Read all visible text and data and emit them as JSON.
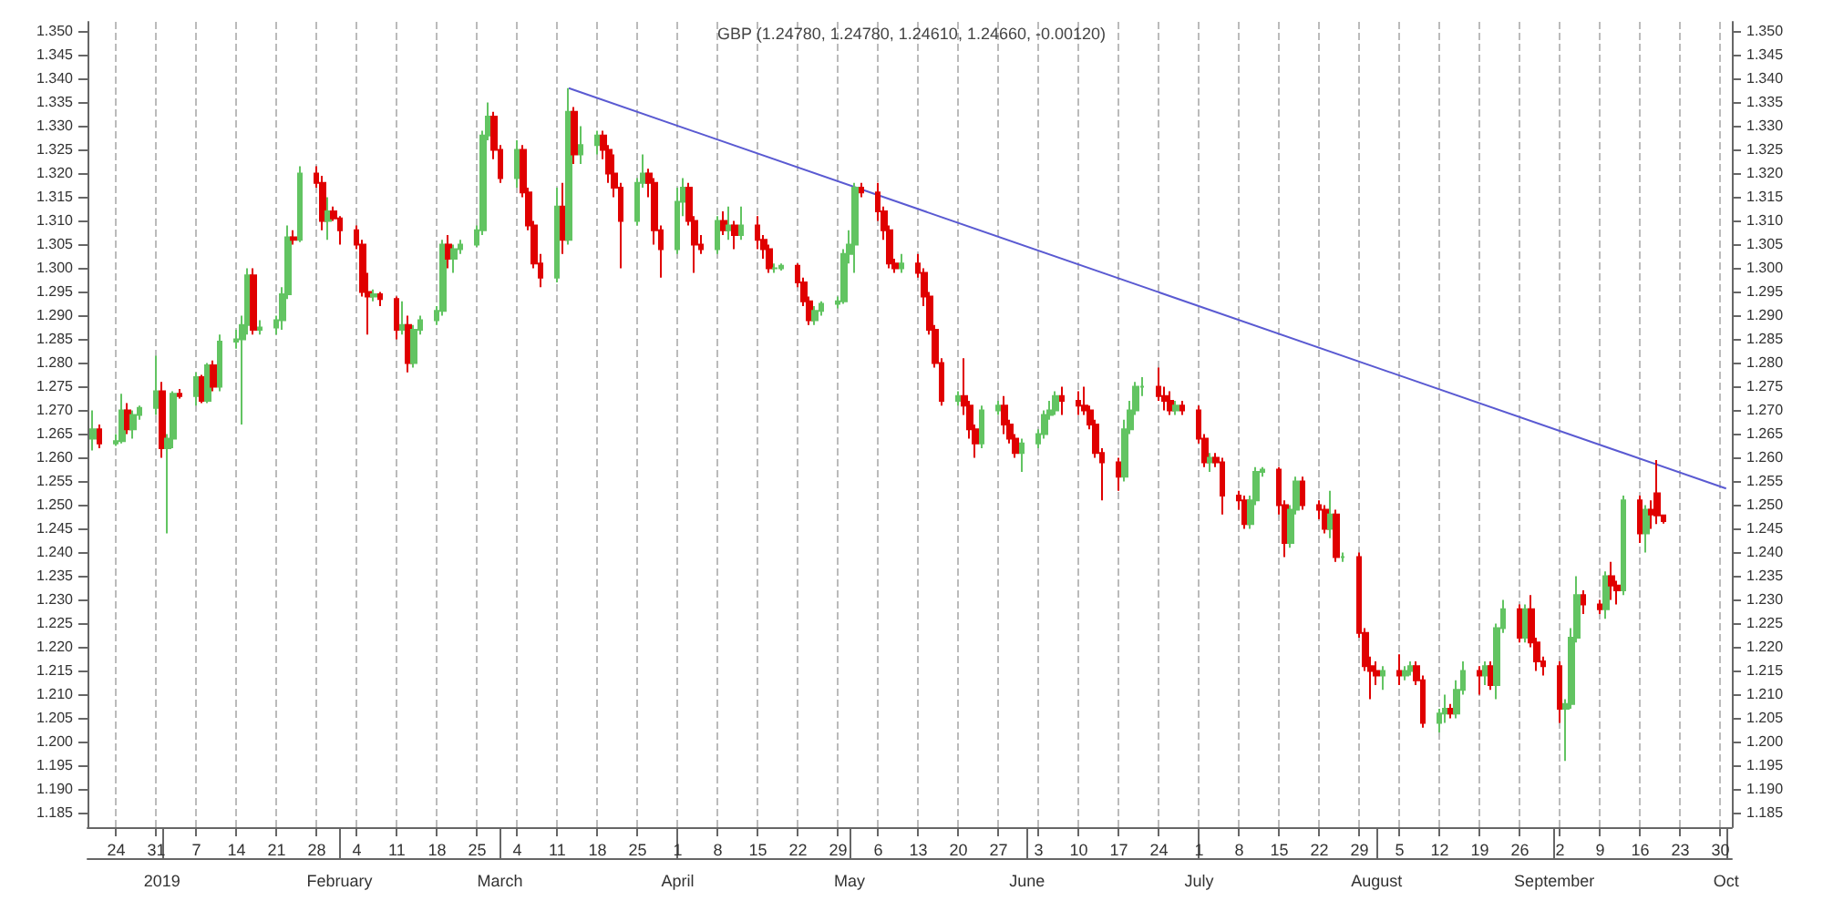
{
  "chart_data": {
    "type": "candlestick",
    "title": "GBP (1.24780, 1.24780, 1.24610, 1.24660, -0.00120)",
    "grid": "x",
    "xlim": [
      "2018-12-19",
      "2019-10-02"
    ],
    "xticks": [
      {
        "value": "2018-12-24",
        "label": "24"
      },
      {
        "value": "2018-12-31",
        "label": "31"
      },
      {
        "value": "2019-01-07",
        "label": "7"
      },
      {
        "value": "2019-01-14",
        "label": "14"
      },
      {
        "value": "2019-01-21",
        "label": "21"
      },
      {
        "value": "2019-01-28",
        "label": "28"
      },
      {
        "value": "2019-02-04",
        "label": "4"
      },
      {
        "value": "2019-02-11",
        "label": "11"
      },
      {
        "value": "2019-02-18",
        "label": "18"
      },
      {
        "value": "2019-02-25",
        "label": "25"
      },
      {
        "value": "2019-03-04",
        "label": "4"
      },
      {
        "value": "2019-03-11",
        "label": "11"
      },
      {
        "value": "2019-03-18",
        "label": "18"
      },
      {
        "value": "2019-03-25",
        "label": "25"
      },
      {
        "value": "2019-04-01",
        "label": "1"
      },
      {
        "value": "2019-04-08",
        "label": "8"
      },
      {
        "value": "2019-04-15",
        "label": "15"
      },
      {
        "value": "2019-04-22",
        "label": "22"
      },
      {
        "value": "2019-04-29",
        "label": "29"
      },
      {
        "value": "2019-05-06",
        "label": "6"
      },
      {
        "value": "2019-05-13",
        "label": "13"
      },
      {
        "value": "2019-05-20",
        "label": "20"
      },
      {
        "value": "2019-05-27",
        "label": "27"
      },
      {
        "value": "2019-06-03",
        "label": "3"
      },
      {
        "value": "2019-06-10",
        "label": "10"
      },
      {
        "value": "2019-06-17",
        "label": "17"
      },
      {
        "value": "2019-06-24",
        "label": "24"
      },
      {
        "value": "2019-07-01",
        "label": "1"
      },
      {
        "value": "2019-07-08",
        "label": "8"
      },
      {
        "value": "2019-07-15",
        "label": "15"
      },
      {
        "value": "2019-07-22",
        "label": "22"
      },
      {
        "value": "2019-07-29",
        "label": "29"
      },
      {
        "value": "2019-08-05",
        "label": "5"
      },
      {
        "value": "2019-08-12",
        "label": "12"
      },
      {
        "value": "2019-08-19",
        "label": "19"
      },
      {
        "value": "2019-08-26",
        "label": "26"
      },
      {
        "value": "2019-09-02",
        "label": "2"
      },
      {
        "value": "2019-09-09",
        "label": "9"
      },
      {
        "value": "2019-09-16",
        "label": "16"
      },
      {
        "value": "2019-09-23",
        "label": "23"
      },
      {
        "value": "2019-09-30",
        "label": "30"
      }
    ],
    "x2lim": [
      "2018-12-19",
      "2019-10-02"
    ],
    "x2ticks": [
      {
        "value": "2019-01-01",
        "label": "2019"
      },
      {
        "value": "2019-02-01",
        "label": "February"
      },
      {
        "value": "2019-03-01",
        "label": "March"
      },
      {
        "value": "2019-04-01",
        "label": "April"
      },
      {
        "value": "2019-05-01",
        "label": "May"
      },
      {
        "value": "2019-06-01",
        "label": "June"
      },
      {
        "value": "2019-07-01",
        "label": "July"
      },
      {
        "value": "2019-08-01",
        "label": "August"
      },
      {
        "value": "2019-09-01",
        "label": "September"
      },
      {
        "value": "2019-10-01",
        "label": "Oct"
      }
    ],
    "ylim": [
      1.182,
      1.352
    ],
    "yticks": [
      {
        "value": 1.185,
        "label": "1.185"
      },
      {
        "value": 1.19,
        "label": "1.190"
      },
      {
        "value": 1.195,
        "label": "1.195"
      },
      {
        "value": 1.2,
        "label": "1.200"
      },
      {
        "value": 1.205,
        "label": "1.205"
      },
      {
        "value": 1.21,
        "label": "1.210"
      },
      {
        "value": 1.215,
        "label": "1.215"
      },
      {
        "value": 1.22,
        "label": "1.220"
      },
      {
        "value": 1.225,
        "label": "1.225"
      },
      {
        "value": 1.23,
        "label": "1.230"
      },
      {
        "value": 1.235,
        "label": "1.235"
      },
      {
        "value": 1.24,
        "label": "1.240"
      },
      {
        "value": 1.245,
        "label": "1.245"
      },
      {
        "value": 1.25,
        "label": "1.250"
      },
      {
        "value": 1.255,
        "label": "1.255"
      },
      {
        "value": 1.26,
        "label": "1.260"
      },
      {
        "value": 1.265,
        "label": "1.265"
      },
      {
        "value": 1.27,
        "label": "1.270"
      },
      {
        "value": 1.275,
        "label": "1.275"
      },
      {
        "value": 1.28,
        "label": "1.280"
      },
      {
        "value": 1.285,
        "label": "1.285"
      },
      {
        "value": 1.29,
        "label": "1.290"
      },
      {
        "value": 1.295,
        "label": "1.295"
      },
      {
        "value": 1.3,
        "label": "1.300"
      },
      {
        "value": 1.305,
        "label": "1.305"
      },
      {
        "value": 1.31,
        "label": "1.310"
      },
      {
        "value": 1.315,
        "label": "1.315"
      },
      {
        "value": 1.32,
        "label": "1.320"
      },
      {
        "value": 1.325,
        "label": "1.325"
      },
      {
        "value": 1.33,
        "label": "1.330"
      },
      {
        "value": 1.335,
        "label": "1.335"
      },
      {
        "value": 1.34,
        "label": "1.340"
      },
      {
        "value": 1.345,
        "label": "1.345"
      },
      {
        "value": 1.35,
        "label": "1.350"
      }
    ],
    "y2lim": [
      1.182,
      1.352
    ],
    "y2ticks": [
      {
        "value": 1.185,
        "label": "1.185"
      },
      {
        "value": 1.19,
        "label": "1.190"
      },
      {
        "value": 1.195,
        "label": "1.195"
      },
      {
        "value": 1.2,
        "label": "1.200"
      },
      {
        "value": 1.205,
        "label": "1.205"
      },
      {
        "value": 1.21,
        "label": "1.210"
      },
      {
        "value": 1.215,
        "label": "1.215"
      },
      {
        "value": 1.22,
        "label": "1.220"
      },
      {
        "value": 1.225,
        "label": "1.225"
      },
      {
        "value": 1.23,
        "label": "1.230"
      },
      {
        "value": 1.235,
        "label": "1.235"
      },
      {
        "value": 1.24,
        "label": "1.240"
      },
      {
        "value": 1.245,
        "label": "1.245"
      },
      {
        "value": 1.25,
        "label": "1.250"
      },
      {
        "value": 1.255,
        "label": "1.255"
      },
      {
        "value": 1.26,
        "label": "1.260"
      },
      {
        "value": 1.265,
        "label": "1.265"
      },
      {
        "value": 1.27,
        "label": "1.270"
      },
      {
        "value": 1.275,
        "label": "1.275"
      },
      {
        "value": 1.28,
        "label": "1.280"
      },
      {
        "value": 1.285,
        "label": "1.285"
      },
      {
        "value": 1.29,
        "label": "1.290"
      },
      {
        "value": 1.295,
        "label": "1.295"
      },
      {
        "value": 1.3,
        "label": "1.300"
      },
      {
        "value": 1.305,
        "label": "1.305"
      },
      {
        "value": 1.31,
        "label": "1.310"
      },
      {
        "value": 1.315,
        "label": "1.315"
      },
      {
        "value": 1.32,
        "label": "1.320"
      },
      {
        "value": 1.325,
        "label": "1.325"
      },
      {
        "value": 1.33,
        "label": "1.330"
      },
      {
        "value": 1.335,
        "label": "1.335"
      },
      {
        "value": 1.34,
        "label": "1.340"
      },
      {
        "value": 1.345,
        "label": "1.345"
      },
      {
        "value": 1.35,
        "label": "1.350"
      }
    ],
    "series": [
      {
        "x": [
          "2018-12-20",
          "2018-12-21",
          "2018-12-24",
          "2018-12-25",
          "2018-12-26",
          "2018-12-27",
          "2018-12-28",
          "2018-12-31",
          "2019-01-01",
          "2019-01-02",
          "2019-01-03",
          "2019-01-04",
          "2019-01-07",
          "2019-01-08",
          "2019-01-09",
          "2019-01-10",
          "2019-01-11",
          "2019-01-14",
          "2019-01-15",
          "2019-01-16",
          "2019-01-17",
          "2019-01-18",
          "2019-01-21",
          "2019-01-22",
          "2019-01-23",
          "2019-01-24",
          "2019-01-25",
          "2019-01-28",
          "2019-01-29",
          "2019-01-30",
          "2019-01-31",
          "2019-02-01",
          "2019-02-04",
          "2019-02-05",
          "2019-02-06",
          "2019-02-07",
          "2019-02-08",
          "2019-02-11",
          "2019-02-12",
          "2019-02-13",
          "2019-02-14",
          "2019-02-15",
          "2019-02-18",
          "2019-02-19",
          "2019-02-20",
          "2019-02-21",
          "2019-02-22",
          "2019-02-25",
          "2019-02-26",
          "2019-02-27",
          "2019-02-28",
          "2019-03-01",
          "2019-03-04",
          "2019-03-05",
          "2019-03-06",
          "2019-03-07",
          "2019-03-08",
          "2019-03-11",
          "2019-03-12",
          "2019-03-13",
          "2019-03-14",
          "2019-03-15",
          "2019-03-18",
          "2019-03-19",
          "2019-03-20",
          "2019-03-21",
          "2019-03-22",
          "2019-03-25",
          "2019-03-26",
          "2019-03-27",
          "2019-03-28",
          "2019-03-29",
          "2019-04-01",
          "2019-04-02",
          "2019-04-03",
          "2019-04-04",
          "2019-04-05",
          "2019-04-08",
          "2019-04-09",
          "2019-04-10",
          "2019-04-11",
          "2019-04-12",
          "2019-04-15",
          "2019-04-16",
          "2019-04-17",
          "2019-04-18",
          "2019-04-19",
          "2019-04-22",
          "2019-04-23",
          "2019-04-24",
          "2019-04-25",
          "2019-04-26",
          "2019-04-29",
          "2019-04-30",
          "2019-05-01",
          "2019-05-02",
          "2019-05-03",
          "2019-05-06",
          "2019-05-07",
          "2019-05-08",
          "2019-05-09",
          "2019-05-10",
          "2019-05-13",
          "2019-05-14",
          "2019-05-15",
          "2019-05-16",
          "2019-05-17",
          "2019-05-20",
          "2019-05-21",
          "2019-05-22",
          "2019-05-23",
          "2019-05-24",
          "2019-05-27",
          "2019-05-28",
          "2019-05-29",
          "2019-05-30",
          "2019-05-31",
          "2019-06-03",
          "2019-06-04",
          "2019-06-05",
          "2019-06-06",
          "2019-06-07",
          "2019-06-10",
          "2019-06-11",
          "2019-06-12",
          "2019-06-13",
          "2019-06-14",
          "2019-06-17",
          "2019-06-18",
          "2019-06-19",
          "2019-06-20",
          "2019-06-21",
          "2019-06-24",
          "2019-06-25",
          "2019-06-26",
          "2019-06-27",
          "2019-06-28",
          "2019-07-01",
          "2019-07-02",
          "2019-07-03",
          "2019-07-04",
          "2019-07-05",
          "2019-07-08",
          "2019-07-09",
          "2019-07-10",
          "2019-07-11",
          "2019-07-12",
          "2019-07-15",
          "2019-07-16",
          "2019-07-17",
          "2019-07-18",
          "2019-07-19",
          "2019-07-22",
          "2019-07-23",
          "2019-07-24",
          "2019-07-25",
          "2019-07-26",
          "2019-07-29",
          "2019-07-30",
          "2019-07-31",
          "2019-08-01",
          "2019-08-02",
          "2019-08-05",
          "2019-08-06",
          "2019-08-07",
          "2019-08-08",
          "2019-08-09",
          "2019-08-12",
          "2019-08-13",
          "2019-08-14",
          "2019-08-15",
          "2019-08-16",
          "2019-08-19",
          "2019-08-20",
          "2019-08-21",
          "2019-08-22",
          "2019-08-23",
          "2019-08-26",
          "2019-08-27",
          "2019-08-28",
          "2019-08-29",
          "2019-08-30",
          "2019-09-02",
          "2019-09-03",
          "2019-09-04",
          "2019-09-05",
          "2019-09-06",
          "2019-09-09",
          "2019-09-10",
          "2019-09-11",
          "2019-09-12",
          "2019-09-13",
          "2019-09-16",
          "2019-09-17",
          "2019-09-18",
          "2019-09-19",
          "2019-09-20"
        ],
        "ohlc": [
          [
            1.264,
            1.27,
            1.2615,
            1.266
          ],
          [
            1.266,
            1.267,
            1.262,
            1.263
          ],
          [
            1.263,
            1.265,
            1.2625,
            1.2635
          ],
          [
            1.2635,
            1.2735,
            1.263,
            1.27
          ],
          [
            1.27,
            1.2715,
            1.265,
            1.266
          ],
          [
            1.266,
            1.27,
            1.264,
            1.269
          ],
          [
            1.269,
            1.271,
            1.268,
            1.2705
          ],
          [
            1.2705,
            1.2815,
            1.269,
            1.274
          ],
          [
            1.274,
            1.276,
            1.26,
            1.262
          ],
          [
            1.262,
            1.265,
            1.244,
            1.264
          ],
          [
            1.264,
            1.274,
            1.262,
            1.2735
          ],
          [
            1.2735,
            1.2745,
            1.2725,
            1.273
          ],
          [
            1.273,
            1.278,
            1.271,
            1.277
          ],
          [
            1.277,
            1.2775,
            1.2715,
            1.272
          ],
          [
            1.272,
            1.28,
            1.2715,
            1.2795
          ],
          [
            1.2795,
            1.2805,
            1.274,
            1.275
          ],
          [
            1.275,
            1.286,
            1.274,
            1.2845
          ],
          [
            1.2845,
            1.287,
            1.283,
            1.285
          ],
          [
            1.285,
            1.29,
            1.267,
            1.288
          ],
          [
            1.288,
            1.3,
            1.286,
            1.2985
          ],
          [
            1.2985,
            1.3,
            1.286,
            1.287
          ],
          [
            1.287,
            1.289,
            1.286,
            1.2875
          ],
          [
            1.2875,
            1.29,
            1.286,
            1.289
          ],
          [
            1.289,
            1.296,
            1.287,
            1.2945
          ],
          [
            1.2945,
            1.309,
            1.2935,
            1.3065
          ],
          [
            1.3065,
            1.308,
            1.305,
            1.306
          ],
          [
            1.306,
            1.3215,
            1.3055,
            1.32
          ],
          [
            1.32,
            1.3215,
            1.317,
            1.318
          ],
          [
            1.318,
            1.3195,
            1.308,
            1.31
          ],
          [
            1.31,
            1.315,
            1.306,
            1.312
          ],
          [
            1.312,
            1.313,
            1.31,
            1.3105
          ],
          [
            1.3105,
            1.311,
            1.305,
            1.308
          ],
          [
            1.308,
            1.309,
            1.304,
            1.305
          ],
          [
            1.305,
            1.306,
            1.294,
            1.295
          ],
          [
            1.295,
            1.299,
            1.286,
            1.294
          ],
          [
            1.294,
            1.2955,
            1.293,
            1.2945
          ],
          [
            1.2945,
            1.295,
            1.292,
            1.2935
          ],
          [
            1.2935,
            1.294,
            1.285,
            1.287
          ],
          [
            1.287,
            1.293,
            1.286,
            1.288
          ],
          [
            1.288,
            1.29,
            1.278,
            1.28
          ],
          [
            1.28,
            1.288,
            1.279,
            1.287
          ],
          [
            1.287,
            1.29,
            1.286,
            1.289
          ],
          [
            1.289,
            1.292,
            1.288,
            1.291
          ],
          [
            1.291,
            1.306,
            1.29,
            1.305
          ],
          [
            1.305,
            1.307,
            1.3,
            1.302
          ],
          [
            1.302,
            1.305,
            1.299,
            1.304
          ],
          [
            1.304,
            1.306,
            1.303,
            1.305
          ],
          [
            1.305,
            1.309,
            1.3045,
            1.308
          ],
          [
            1.308,
            1.329,
            1.307,
            1.328
          ],
          [
            1.328,
            1.335,
            1.327,
            1.332
          ],
          [
            1.332,
            1.333,
            1.323,
            1.325
          ],
          [
            1.325,
            1.326,
            1.318,
            1.319
          ],
          [
            1.319,
            1.327,
            1.317,
            1.325
          ],
          [
            1.325,
            1.326,
            1.315,
            1.316
          ],
          [
            1.316,
            1.317,
            1.308,
            1.309
          ],
          [
            1.309,
            1.31,
            1.3,
            1.301
          ],
          [
            1.301,
            1.303,
            1.296,
            1.298
          ],
          [
            1.298,
            1.317,
            1.297,
            1.313
          ],
          [
            1.313,
            1.318,
            1.303,
            1.306
          ],
          [
            1.306,
            1.338,
            1.305,
            1.333
          ],
          [
            1.333,
            1.334,
            1.322,
            1.324
          ],
          [
            1.324,
            1.33,
            1.322,
            1.326
          ],
          [
            1.326,
            1.329,
            1.324,
            1.328
          ],
          [
            1.328,
            1.329,
            1.323,
            1.325
          ],
          [
            1.325,
            1.326,
            1.318,
            1.32
          ],
          [
            1.32,
            1.324,
            1.315,
            1.317
          ],
          [
            1.317,
            1.318,
            1.3,
            1.31
          ],
          [
            1.31,
            1.319,
            1.309,
            1.318
          ],
          [
            1.318,
            1.324,
            1.317,
            1.32
          ],
          [
            1.32,
            1.321,
            1.315,
            1.318
          ],
          [
            1.318,
            1.319,
            1.305,
            1.308
          ],
          [
            1.308,
            1.309,
            1.298,
            1.304
          ],
          [
            1.304,
            1.317,
            1.303,
            1.314
          ],
          [
            1.314,
            1.319,
            1.311,
            1.317
          ],
          [
            1.317,
            1.318,
            1.309,
            1.31
          ],
          [
            1.31,
            1.311,
            1.299,
            1.305
          ],
          [
            1.305,
            1.307,
            1.303,
            1.304
          ],
          [
            1.304,
            1.311,
            1.303,
            1.31
          ],
          [
            1.31,
            1.312,
            1.307,
            1.308
          ],
          [
            1.308,
            1.313,
            1.306,
            1.309
          ],
          [
            1.309,
            1.31,
            1.304,
            1.307
          ],
          [
            1.307,
            1.313,
            1.306,
            1.309
          ],
          [
            1.309,
            1.311,
            1.304,
            1.306
          ],
          [
            1.306,
            1.307,
            1.302,
            1.304
          ],
          [
            1.304,
            1.305,
            1.299,
            1.3
          ],
          [
            1.3,
            1.301,
            1.299,
            1.3
          ],
          [
            1.3,
            1.301,
            1.2995,
            1.3005
          ],
          [
            1.3005,
            1.301,
            1.296,
            1.297
          ],
          [
            1.297,
            1.298,
            1.292,
            1.293
          ],
          [
            1.293,
            1.294,
            1.288,
            1.289
          ],
          [
            1.289,
            1.292,
            1.288,
            1.291
          ],
          [
            1.291,
            1.293,
            1.29,
            1.2925
          ],
          [
            1.2925,
            1.294,
            1.2915,
            1.293
          ],
          [
            1.293,
            1.304,
            1.2925,
            1.303
          ],
          [
            1.303,
            1.308,
            1.301,
            1.305
          ],
          [
            1.305,
            1.318,
            1.299,
            1.317
          ],
          [
            1.317,
            1.318,
            1.315,
            1.316
          ],
          [
            1.316,
            1.318,
            1.31,
            1.312
          ],
          [
            1.312,
            1.313,
            1.306,
            1.308
          ],
          [
            1.308,
            1.309,
            1.3,
            1.301
          ],
          [
            1.301,
            1.302,
            1.299,
            1.3
          ],
          [
            1.3,
            1.303,
            1.299,
            1.301
          ],
          [
            1.301,
            1.303,
            1.298,
            1.299
          ],
          [
            1.299,
            1.3,
            1.292,
            1.294
          ],
          [
            1.294,
            1.295,
            1.286,
            1.287
          ],
          [
            1.287,
            1.288,
            1.279,
            1.28
          ],
          [
            1.28,
            1.281,
            1.271,
            1.272
          ],
          [
            1.272,
            1.274,
            1.271,
            1.273
          ],
          [
            1.273,
            1.281,
            1.269,
            1.271
          ],
          [
            1.271,
            1.272,
            1.264,
            1.266
          ],
          [
            1.266,
            1.267,
            1.26,
            1.263
          ],
          [
            1.263,
            1.271,
            1.262,
            1.27
          ],
          [
            1.27,
            1.272,
            1.269,
            1.271
          ],
          [
            1.271,
            1.273,
            1.265,
            1.267
          ],
          [
            1.267,
            1.268,
            1.263,
            1.264
          ],
          [
            1.264,
            1.265,
            1.26,
            1.261
          ],
          [
            1.261,
            1.264,
            1.257,
            1.263
          ],
          [
            1.263,
            1.266,
            1.262,
            1.265
          ],
          [
            1.265,
            1.27,
            1.264,
            1.269
          ],
          [
            1.269,
            1.272,
            1.268,
            1.27
          ],
          [
            1.27,
            1.274,
            1.269,
            1.273
          ],
          [
            1.273,
            1.275,
            1.269,
            1.272
          ],
          [
            1.272,
            1.274,
            1.269,
            1.271
          ],
          [
            1.271,
            1.275,
            1.269,
            1.27
          ],
          [
            1.27,
            1.271,
            1.266,
            1.267
          ],
          [
            1.267,
            1.268,
            1.26,
            1.261
          ],
          [
            1.261,
            1.262,
            1.251,
            1.259
          ],
          [
            1.259,
            1.26,
            1.253,
            1.256
          ],
          [
            1.256,
            1.268,
            1.255,
            1.266
          ],
          [
            1.266,
            1.272,
            1.265,
            1.27
          ],
          [
            1.27,
            1.276,
            1.269,
            1.275
          ],
          [
            1.275,
            1.277,
            1.273,
            1.275
          ],
          [
            1.275,
            1.279,
            1.272,
            1.273
          ],
          [
            1.273,
            1.275,
            1.27,
            1.272
          ],
          [
            1.272,
            1.274,
            1.269,
            1.27
          ],
          [
            1.27,
            1.272,
            1.269,
            1.271
          ],
          [
            1.271,
            1.272,
            1.269,
            1.27
          ],
          [
            1.27,
            1.271,
            1.263,
            1.264
          ],
          [
            1.264,
            1.265,
            1.258,
            1.259
          ],
          [
            1.259,
            1.261,
            1.257,
            1.26
          ],
          [
            1.26,
            1.261,
            1.258,
            1.259
          ],
          [
            1.259,
            1.26,
            1.248,
            1.252
          ],
          [
            1.252,
            1.253,
            1.249,
            1.251
          ],
          [
            1.251,
            1.252,
            1.245,
            1.246
          ],
          [
            1.246,
            1.252,
            1.245,
            1.251
          ],
          [
            1.251,
            1.258,
            1.25,
            1.257
          ],
          [
            1.257,
            1.258,
            1.256,
            1.2575
          ],
          [
            1.2575,
            1.258,
            1.248,
            1.25
          ],
          [
            1.25,
            1.251,
            1.239,
            1.242
          ],
          [
            1.242,
            1.25,
            1.241,
            1.249
          ],
          [
            1.249,
            1.256,
            1.248,
            1.255
          ],
          [
            1.255,
            1.256,
            1.249,
            1.25
          ],
          [
            1.25,
            1.251,
            1.247,
            1.249
          ],
          [
            1.249,
            1.25,
            1.244,
            1.245
          ],
          [
            1.245,
            1.253,
            1.243,
            1.248
          ],
          [
            1.248,
            1.249,
            1.238,
            1.239
          ],
          [
            1.239,
            1.24,
            1.238,
            1.239
          ],
          [
            1.239,
            1.24,
            1.222,
            1.223
          ],
          [
            1.223,
            1.224,
            1.215,
            1.216
          ],
          [
            1.216,
            1.218,
            1.209,
            1.215
          ],
          [
            1.215,
            1.217,
            1.212,
            1.214
          ],
          [
            1.214,
            1.216,
            1.211,
            1.215
          ],
          [
            1.215,
            1.2185,
            1.212,
            1.214
          ],
          [
            1.214,
            1.216,
            1.213,
            1.215
          ],
          [
            1.215,
            1.217,
            1.214,
            1.216
          ],
          [
            1.216,
            1.217,
            1.212,
            1.213
          ],
          [
            1.213,
            1.214,
            1.203,
            1.204
          ],
          [
            1.204,
            1.207,
            1.202,
            1.206
          ],
          [
            1.206,
            1.21,
            1.204,
            1.207
          ],
          [
            1.207,
            1.208,
            1.205,
            1.206
          ],
          [
            1.206,
            1.213,
            1.205,
            1.211
          ],
          [
            1.211,
            1.217,
            1.21,
            1.215
          ],
          [
            1.215,
            1.216,
            1.21,
            1.214
          ],
          [
            1.214,
            1.217,
            1.212,
            1.216
          ],
          [
            1.216,
            1.217,
            1.211,
            1.212
          ],
          [
            1.212,
            1.225,
            1.209,
            1.224
          ],
          [
            1.224,
            1.23,
            1.223,
            1.228
          ],
          [
            1.228,
            1.229,
            1.221,
            1.222
          ],
          [
            1.222,
            1.229,
            1.221,
            1.228
          ],
          [
            1.228,
            1.231,
            1.22,
            1.221
          ],
          [
            1.221,
            1.222,
            1.215,
            1.217
          ],
          [
            1.217,
            1.218,
            1.214,
            1.216
          ],
          [
            1.216,
            1.217,
            1.204,
            1.207
          ],
          [
            1.207,
            1.209,
            1.196,
            1.208
          ],
          [
            1.208,
            1.224,
            1.207,
            1.222
          ],
          [
            1.222,
            1.235,
            1.221,
            1.231
          ],
          [
            1.231,
            1.232,
            1.227,
            1.229
          ],
          [
            1.229,
            1.23,
            1.227,
            1.228
          ],
          [
            1.228,
            1.236,
            1.226,
            1.235
          ],
          [
            1.235,
            1.238,
            1.23,
            1.233
          ],
          [
            1.233,
            1.234,
            1.229,
            1.232
          ],
          [
            1.232,
            1.252,
            1.231,
            1.251
          ],
          [
            1.251,
            1.252,
            1.242,
            1.244
          ],
          [
            1.244,
            1.25,
            1.24,
            1.249
          ],
          [
            1.249,
            1.251,
            1.245,
            1.248
          ],
          [
            1.2525,
            1.2595,
            1.246,
            1.2478
          ],
          [
            1.2478,
            1.2478,
            1.2461,
            1.2466
          ]
        ],
        "colors": [
          "#62c462",
          "#e00000",
          "#62c462",
          "#62c462",
          "#e00000",
          "#62c462",
          "#62c462",
          "#62c462",
          "#e00000",
          "#62c462",
          "#62c462",
          "#e00000",
          "#62c462",
          "#e00000",
          "#62c462",
          "#e00000",
          "#62c462",
          "#62c462",
          "#62c462",
          "#62c462",
          "#e00000",
          "#62c462",
          "#62c462",
          "#62c462",
          "#62c462",
          "#e00000",
          "#62c462",
          "#e00000",
          "#e00000",
          "#62c462",
          "#e00000",
          "#e00000",
          "#e00000",
          "#e00000",
          "#e00000",
          "#62c462",
          "#e00000",
          "#e00000",
          "#62c462",
          "#e00000",
          "#62c462",
          "#62c462",
          "#62c462",
          "#62c462",
          "#e00000",
          "#62c462",
          "#62c462",
          "#62c462",
          "#62c462",
          "#62c462",
          "#e00000",
          "#e00000",
          "#62c462",
          "#e00000",
          "#e00000",
          "#e00000",
          "#e00000",
          "#62c462",
          "#e00000",
          "#62c462",
          "#e00000",
          "#62c462",
          "#62c462",
          "#e00000",
          "#e00000",
          "#e00000",
          "#e00000",
          "#62c462",
          "#62c462",
          "#e00000",
          "#e00000",
          "#e00000",
          "#62c462",
          "#62c462",
          "#e00000",
          "#e00000",
          "#e00000",
          "#62c462",
          "#e00000",
          "#62c462",
          "#e00000",
          "#62c462",
          "#e00000",
          "#e00000",
          "#e00000",
          "#62c462",
          "#62c462",
          "#e00000",
          "#e00000",
          "#e00000",
          "#62c462",
          "#62c462",
          "#62c462",
          "#62c462",
          "#62c462",
          "#62c462",
          "#e00000",
          "#e00000",
          "#e00000",
          "#e00000",
          "#e00000",
          "#62c462",
          "#e00000",
          "#e00000",
          "#e00000",
          "#e00000",
          "#e00000",
          "#62c462",
          "#e00000",
          "#e00000",
          "#e00000",
          "#62c462",
          "#62c462",
          "#e00000",
          "#e00000",
          "#e00000",
          "#62c462",
          "#62c462",
          "#62c462",
          "#62c462",
          "#62c462",
          "#e00000",
          "#e00000",
          "#e00000",
          "#e00000",
          "#e00000",
          "#e00000",
          "#e00000",
          "#62c462",
          "#62c462",
          "#62c462",
          "#62c462",
          "#e00000",
          "#e00000",
          "#e00000",
          "#62c462",
          "#e00000",
          "#e00000",
          "#e00000",
          "#62c462",
          "#e00000",
          "#e00000",
          "#e00000",
          "#e00000",
          "#62c462",
          "#62c462",
          "#62c462",
          "#e00000",
          "#e00000",
          "#62c462",
          "#62c462",
          "#e00000",
          "#e00000",
          "#e00000",
          "#62c462",
          "#e00000",
          "#62c462",
          "#e00000",
          "#e00000",
          "#e00000",
          "#e00000",
          "#62c462",
          "#e00000",
          "#62c462",
          "#62c462",
          "#e00000",
          "#e00000",
          "#62c462",
          "#62c462",
          "#e00000",
          "#62c462",
          "#62c462",
          "#e00000",
          "#62c462",
          "#e00000",
          "#62c462",
          "#62c462",
          "#e00000",
          "#62c462",
          "#e00000",
          "#e00000",
          "#e00000",
          "#e00000",
          "#62c462",
          "#62c462",
          "#62c462",
          "#e00000",
          "#e00000",
          "#62c462",
          "#e00000",
          "#e00000",
          "#62c462",
          "#e00000",
          "#62c462",
          "#e00000",
          "#e00000",
          "#e00000"
        ]
      },
      {
        "type": "line",
        "x": [
          "2019-03-13",
          "2019-10-01"
        ],
        "values": [
          1.338,
          1.2535
        ],
        "color": "#5a5ad2"
      }
    ]
  }
}
